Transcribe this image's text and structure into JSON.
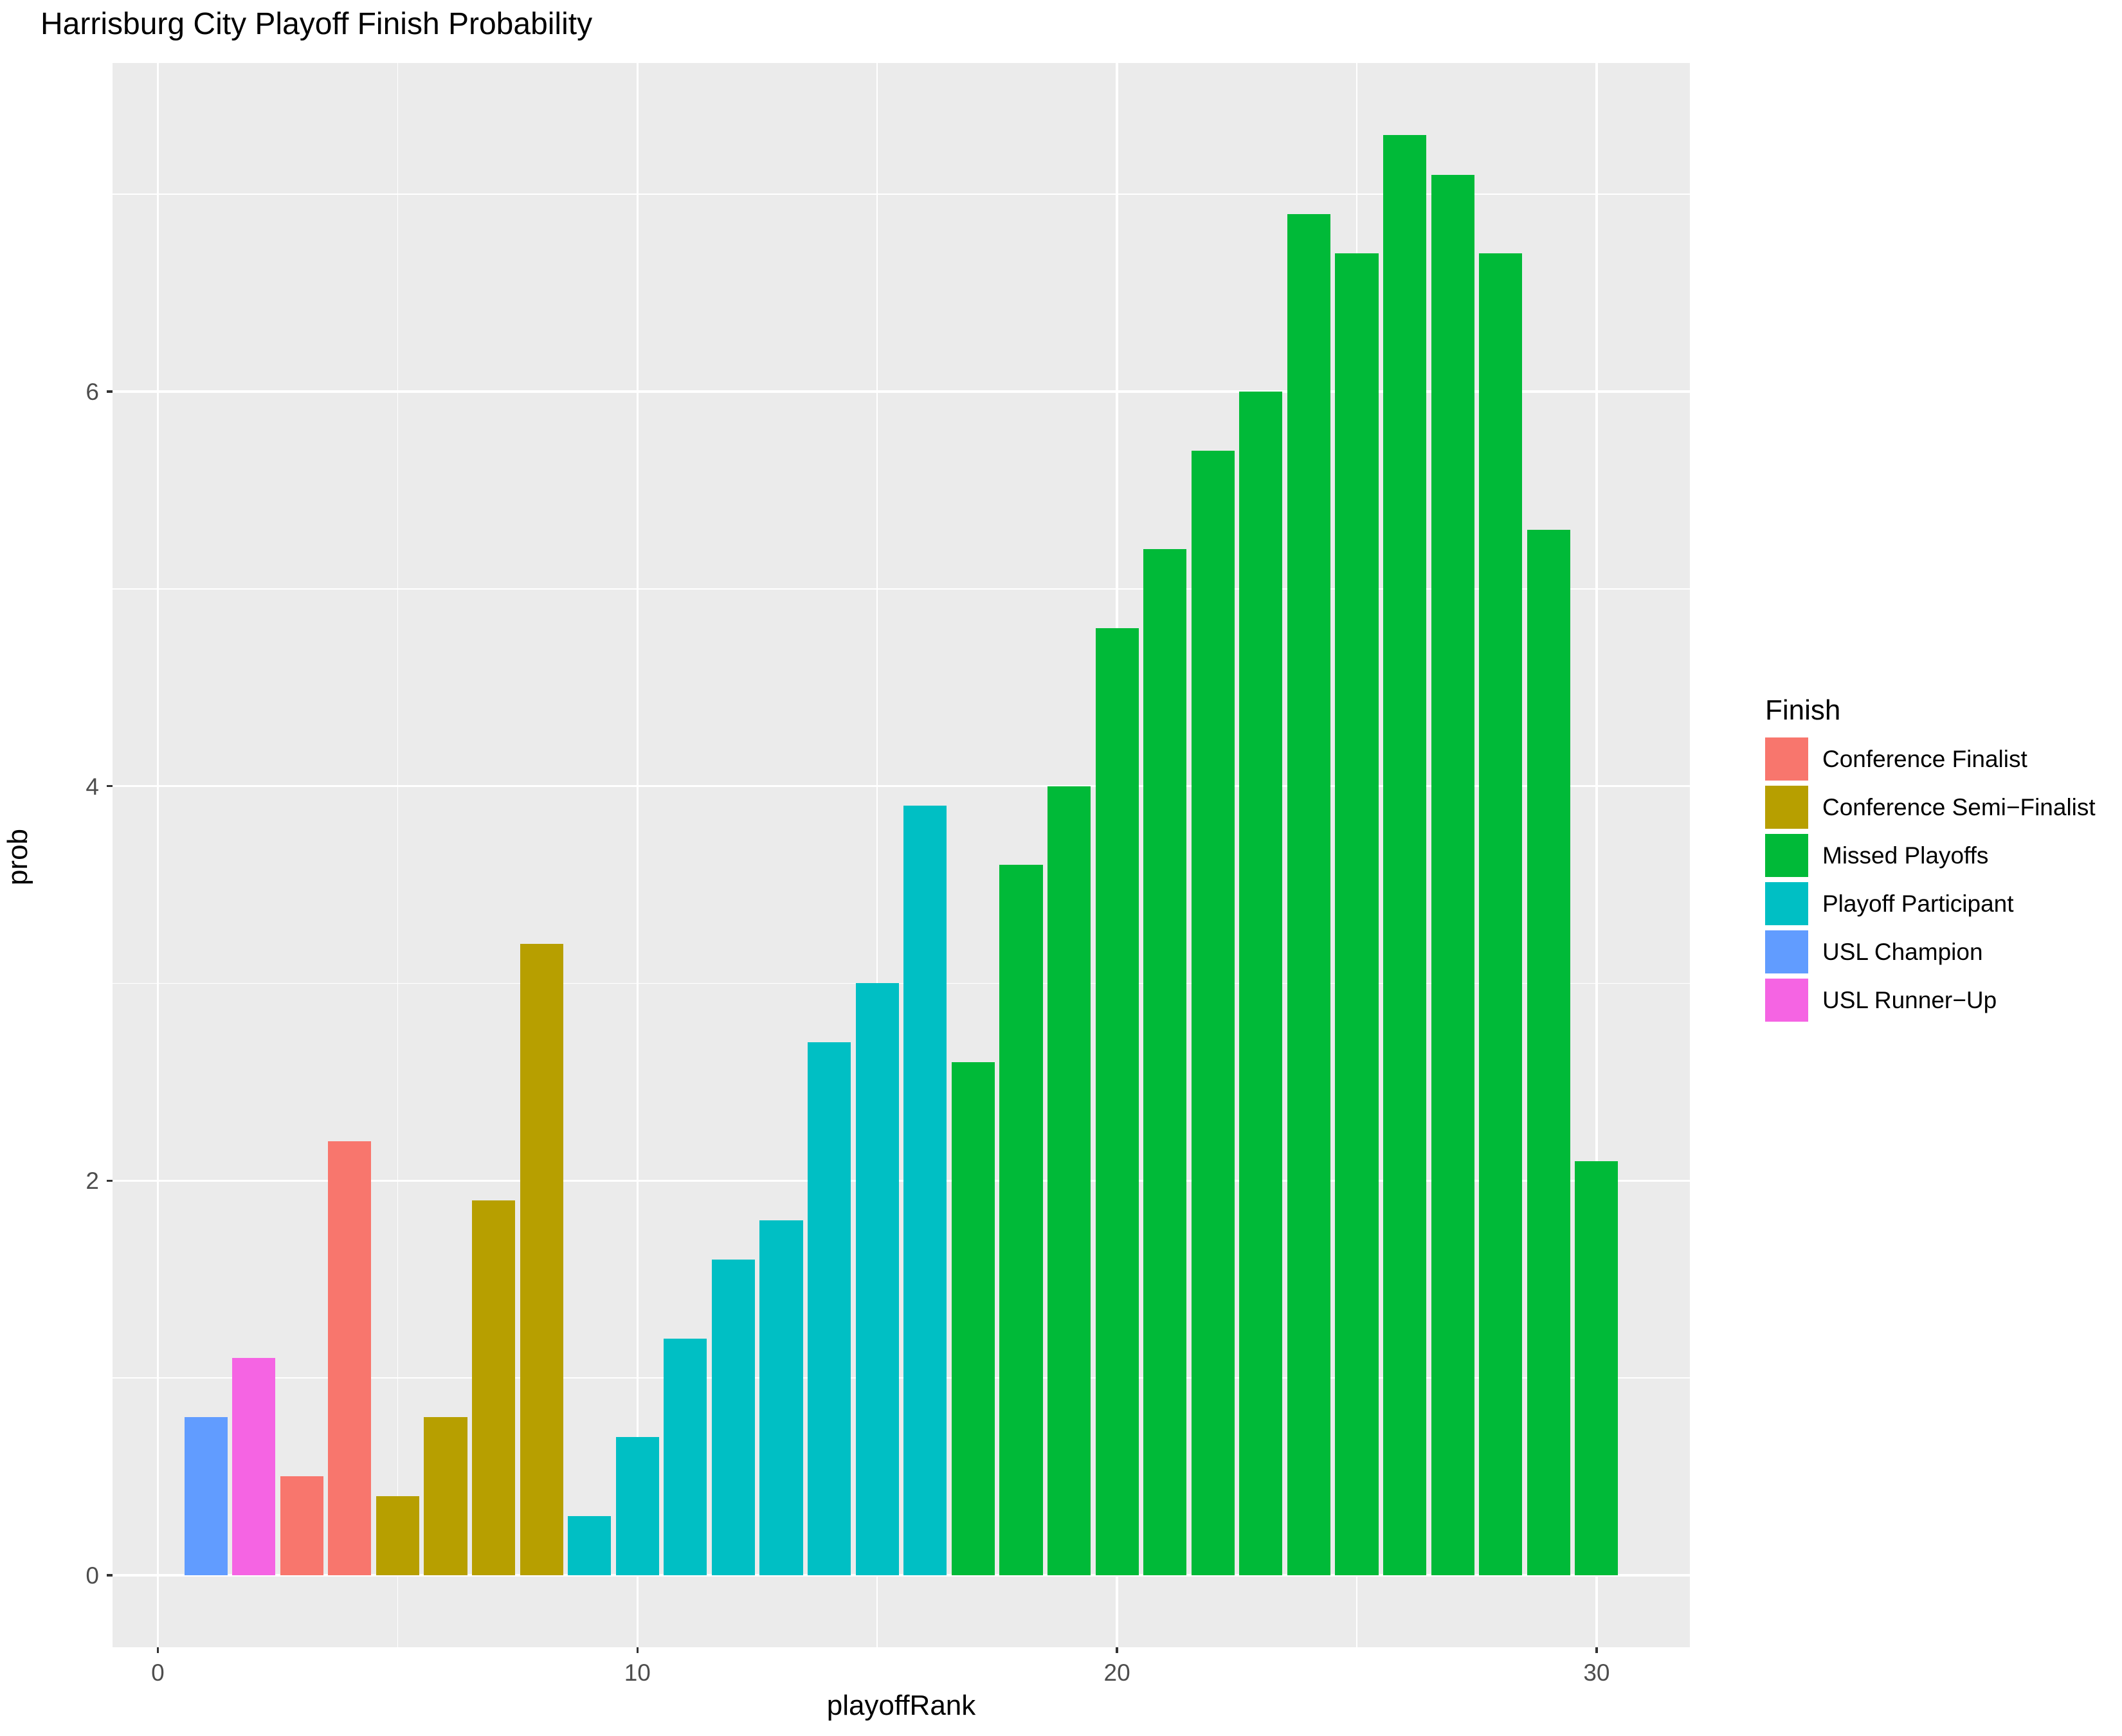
{
  "title": "Harrisburg City Playoff Finish Probability",
  "chart_data": {
    "type": "bar",
    "title": "Harrisburg City Playoff Finish Probability",
    "xlabel": "playoffRank",
    "ylabel": "prob",
    "xlim": [
      -0.945,
      31.945
    ],
    "ylim": [
      -0.3655,
      7.6655
    ],
    "x_major_ticks": [
      0,
      10,
      20,
      30
    ],
    "x_minor_ticks": [
      5,
      15,
      25
    ],
    "y_major_ticks": [
      0,
      2,
      4,
      6
    ],
    "y_minor_ticks": [
      1,
      3,
      5,
      7
    ],
    "grid": true,
    "panel_background": "#EBEBEB",
    "gridline_color": "#ffffff",
    "bar_width": 0.9,
    "legend_position": "right",
    "legend": {
      "title": "Finish",
      "entries": [
        {
          "label": "Conference Finalist",
          "color": "#F8766D"
        },
        {
          "label": "Conference Semi−Finalist",
          "color": "#B79F00"
        },
        {
          "label": "Missed Playoffs",
          "color": "#00BA38"
        },
        {
          "label": "Playoff Participant",
          "color": "#00BFC4"
        },
        {
          "label": "USL Champion",
          "color": "#619CFF"
        },
        {
          "label": "USL Runner−Up",
          "color": "#F564E3"
        }
      ]
    },
    "palette": {
      "Conference Finalist": "#F8766D",
      "Conference Semi−Finalist": "#B79F00",
      "Missed Playoffs": "#00BA38",
      "Playoff Participant": "#00BFC4",
      "USL Champion": "#619CFF",
      "USL Runner−Up": "#F564E3"
    },
    "bars": [
      {
        "rank": 1,
        "prob": 0.8,
        "finish": "USL Champion"
      },
      {
        "rank": 2,
        "prob": 1.1,
        "finish": "USL Runner−Up"
      },
      {
        "rank": 3,
        "prob": 0.5,
        "finish": "Conference Finalist"
      },
      {
        "rank": 4,
        "prob": 2.2,
        "finish": "Conference Finalist"
      },
      {
        "rank": 5,
        "prob": 0.4,
        "finish": "Conference Semi−Finalist"
      },
      {
        "rank": 6,
        "prob": 0.8,
        "finish": "Conference Semi−Finalist"
      },
      {
        "rank": 7,
        "prob": 1.9,
        "finish": "Conference Semi−Finalist"
      },
      {
        "rank": 8,
        "prob": 3.2,
        "finish": "Conference Semi−Finalist"
      },
      {
        "rank": 9,
        "prob": 0.3,
        "finish": "Playoff Participant"
      },
      {
        "rank": 10,
        "prob": 0.7,
        "finish": "Playoff Participant"
      },
      {
        "rank": 11,
        "prob": 1.2,
        "finish": "Playoff Participant"
      },
      {
        "rank": 12,
        "prob": 1.6,
        "finish": "Playoff Participant"
      },
      {
        "rank": 13,
        "prob": 1.8,
        "finish": "Playoff Participant"
      },
      {
        "rank": 14,
        "prob": 2.7,
        "finish": "Playoff Participant"
      },
      {
        "rank": 15,
        "prob": 3.0,
        "finish": "Playoff Participant"
      },
      {
        "rank": 16,
        "prob": 3.9,
        "finish": "Playoff Participant"
      },
      {
        "rank": 17,
        "prob": 2.6,
        "finish": "Missed Playoffs"
      },
      {
        "rank": 18,
        "prob": 3.6,
        "finish": "Missed Playoffs"
      },
      {
        "rank": 19,
        "prob": 4.0,
        "finish": "Missed Playoffs"
      },
      {
        "rank": 20,
        "prob": 4.8,
        "finish": "Missed Playoffs"
      },
      {
        "rank": 21,
        "prob": 5.2,
        "finish": "Missed Playoffs"
      },
      {
        "rank": 22,
        "prob": 5.7,
        "finish": "Missed Playoffs"
      },
      {
        "rank": 23,
        "prob": 6.0,
        "finish": "Missed Playoffs"
      },
      {
        "rank": 24,
        "prob": 6.9,
        "finish": "Missed Playoffs"
      },
      {
        "rank": 25,
        "prob": 6.7,
        "finish": "Missed Playoffs"
      },
      {
        "rank": 26,
        "prob": 7.3,
        "finish": "Missed Playoffs"
      },
      {
        "rank": 27,
        "prob": 7.1,
        "finish": "Missed Playoffs"
      },
      {
        "rank": 28,
        "prob": 6.7,
        "finish": "Missed Playoffs"
      },
      {
        "rank": 29,
        "prob": 5.3,
        "finish": "Missed Playoffs"
      },
      {
        "rank": 30,
        "prob": 2.1,
        "finish": "Missed Playoffs"
      }
    ]
  }
}
